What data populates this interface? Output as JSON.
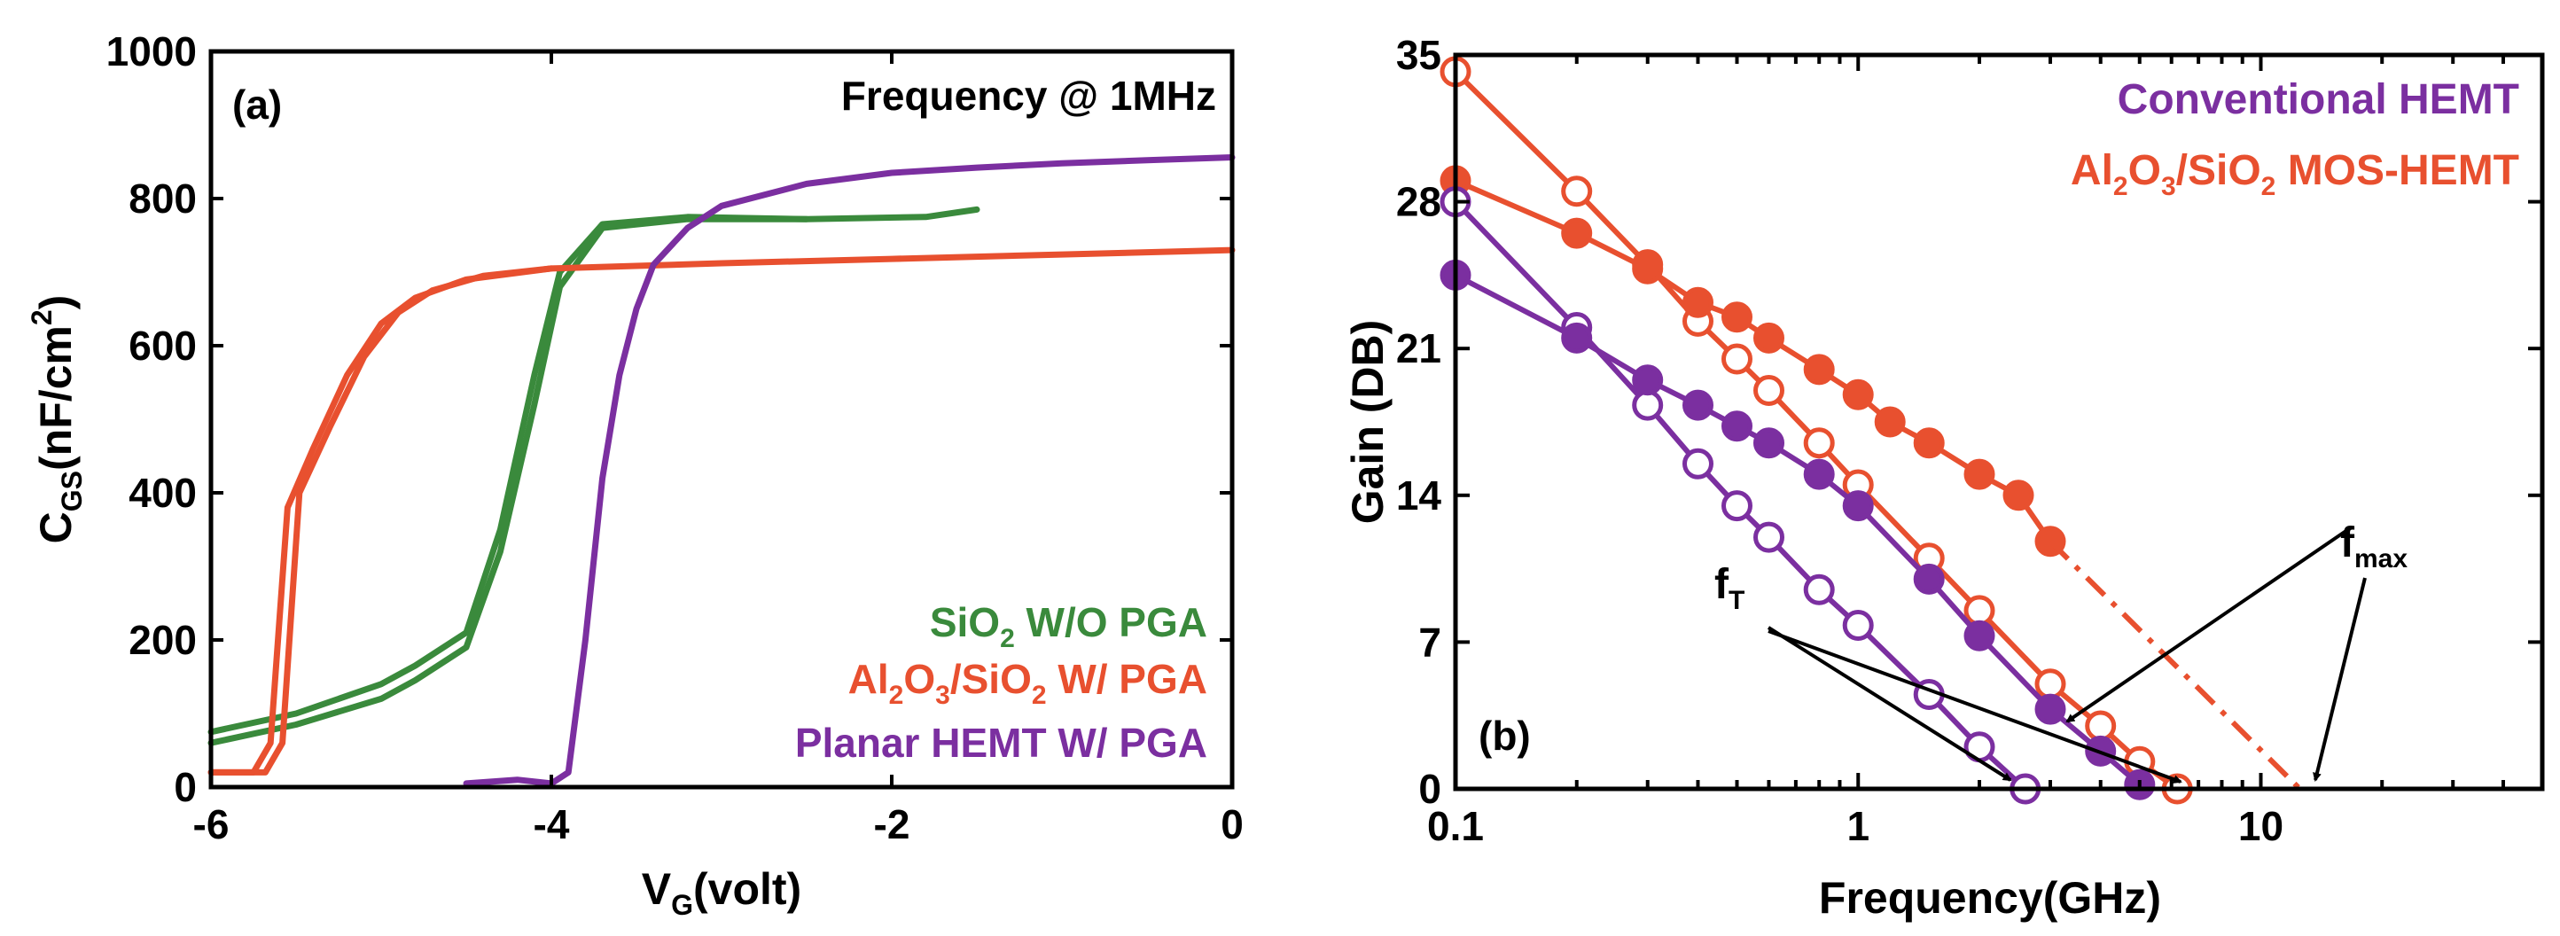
{
  "chart_data": [
    {
      "type": "line",
      "panel_label": "(a)",
      "annotation": "Frequency @ 1MHz",
      "xlabel": {
        "main": "V",
        "sub": "G",
        "rest": "(volt)"
      },
      "ylabel": {
        "main": "C",
        "sub": "GS",
        "rest": "(nF/cm",
        "sup": "2",
        "end": ")"
      },
      "xlim": [
        -6,
        0
      ],
      "ylim": [
        0,
        1000
      ],
      "xticks": [
        -6,
        -4,
        -2,
        0
      ],
      "xtick_labels": [
        "-6",
        "-4",
        "-2",
        "0"
      ],
      "yticks": [
        0,
        200,
        400,
        600,
        800,
        1000
      ],
      "ytick_labels": [
        "0",
        "200",
        "400",
        "600",
        "800",
        "1000"
      ],
      "legend_position": "bottom-right",
      "series": [
        {
          "name": "SiO2 W/O PGA",
          "legend": {
            "a": "SiO",
            "sub1": "2",
            "b": " W/O PGA"
          },
          "color": "#3a8a3c",
          "x": [
            -6,
            -5.5,
            -5,
            -4.8,
            -4.5,
            -4.3,
            -4.1,
            -3.95,
            -3.7,
            -3.2,
            -2.5,
            -1.8,
            -1.5
          ],
          "y": [
            75,
            100,
            140,
            165,
            210,
            350,
            560,
            700,
            765,
            775,
            772,
            775,
            785
          ]
        },
        {
          "name": "SiO2 W/O PGA (reverse)",
          "color": "#3a8a3c",
          "x": [
            -6,
            -5.5,
            -5,
            -4.8,
            -4.5,
            -4.3,
            -4.1,
            -3.95,
            -3.7,
            -3.2,
            -2.5
          ],
          "y": [
            60,
            85,
            120,
            145,
            190,
            320,
            520,
            680,
            760,
            772,
            772
          ]
        },
        {
          "name": "Al2O3/SiO2 W/ PGA",
          "legend": {
            "a": "Al",
            "sub1": "2",
            "b": "O",
            "sub2": "3",
            "c": "/SiO",
            "sub3": "2",
            "d": " W/ PGA"
          },
          "color": "#e8502f",
          "x": [
            -6,
            -5.75,
            -5.65,
            -5.55,
            -5.4,
            -5.2,
            -5,
            -4.8,
            -4.5,
            -4,
            -3,
            -2,
            -1,
            0
          ],
          "y": [
            20,
            20,
            60,
            380,
            460,
            560,
            630,
            665,
            690,
            705,
            712,
            718,
            724,
            730
          ]
        },
        {
          "name": "Al2O3/SiO2 W/ PGA (reverse)",
          "color": "#e8502f",
          "x": [
            -6,
            -5.68,
            -5.58,
            -5.48,
            -5.3,
            -5.1,
            -4.9,
            -4.7,
            -4.4,
            -4
          ],
          "y": [
            20,
            20,
            60,
            400,
            490,
            585,
            645,
            675,
            695,
            705
          ]
        },
        {
          "name": "Planar HEMT W/ PGA",
          "legend": {
            "a": "Planar HEMT W/ PGA"
          },
          "color": "#7b2fa0",
          "x": [
            -4.5,
            -4.2,
            -4,
            -3.9,
            -3.8,
            -3.7,
            -3.6,
            -3.5,
            -3.4,
            -3.2,
            -3,
            -2.5,
            -2,
            -1.5,
            -1,
            -0.5,
            0
          ],
          "y": [
            5,
            10,
            5,
            20,
            200,
            420,
            560,
            650,
            710,
            760,
            790,
            820,
            835,
            842,
            848,
            852,
            856
          ]
        }
      ]
    },
    {
      "type": "line",
      "panel_label": "(b)",
      "xlabel": "Frequency(GHz)",
      "ylabel": "Gain (DB)",
      "xscale": "log",
      "xlim": [
        0.1,
        50
      ],
      "ylim": [
        0,
        35
      ],
      "xticks": [
        0.1,
        1,
        10
      ],
      "xtick_labels": [
        "0.1",
        "1",
        "10"
      ],
      "yticks": [
        0,
        7,
        14,
        21,
        28,
        35
      ],
      "ytick_labels": [
        "0",
        "7",
        "14",
        "21",
        "28",
        "35"
      ],
      "legend_position": "top-right",
      "legend": [
        {
          "name": "Conventional HEMT",
          "color": "#7b2fa0",
          "parts": {
            "a": "Conventional HEMT"
          }
        },
        {
          "name": "Al2O3/SiO2 MOS-HEMT",
          "color": "#e8502f",
          "parts": {
            "a": "Al",
            "sub1": "2",
            "b": "O",
            "sub2": "3",
            "c": "/SiO",
            "sub3": "2",
            "d": " MOS-HEMT"
          }
        }
      ],
      "annotations": {
        "fT": {
          "main": "f",
          "sub": "T"
        },
        "fmax": {
          "main": "f",
          "sub": "max"
        }
      },
      "series": [
        {
          "name": "Al2O3/SiO2 MOS-HEMT fT (open)",
          "color": "#e8502f",
          "marker": "open",
          "x": [
            0.1,
            0.2,
            0.3,
            0.4,
            0.5,
            0.6,
            0.8,
            1,
            1.5,
            2,
            3,
            4,
            5,
            6.2
          ],
          "y": [
            34.2,
            28.5,
            25,
            22.3,
            20.5,
            19,
            16.5,
            14.5,
            11,
            8.5,
            5,
            3,
            1.3,
            0
          ]
        },
        {
          "name": "Al2O3/SiO2 MOS-HEMT fmax (filled)",
          "color": "#e8502f",
          "marker": "filled",
          "x": [
            0.1,
            0.2,
            0.3,
            0.4,
            0.5,
            0.6,
            0.8,
            1,
            1.2,
            1.5,
            2,
            2.5,
            3
          ],
          "y": [
            29,
            26.5,
            24.8,
            23.2,
            22.5,
            21.5,
            20,
            18.8,
            17.5,
            16.5,
            15,
            14,
            11.8
          ]
        },
        {
          "name": "Al2O3/SiO2 MOS-HEMT fmax (extrapolation)",
          "color": "#e8502f",
          "marker": "none",
          "dash": "dash-dot",
          "x": [
            3,
            12.5
          ],
          "y": [
            11.8,
            0
          ]
        },
        {
          "name": "Conventional HEMT fT (open)",
          "color": "#7b2fa0",
          "marker": "open",
          "x": [
            0.1,
            0.2,
            0.3,
            0.4,
            0.5,
            0.6,
            0.8,
            1,
            1.5,
            2,
            2.6
          ],
          "y": [
            28,
            22,
            18.3,
            15.5,
            13.5,
            12,
            9.5,
            7.8,
            4.5,
            2,
            0
          ]
        },
        {
          "name": "Conventional HEMT fmax (filled)",
          "color": "#7b2fa0",
          "marker": "filled",
          "x": [
            0.1,
            0.2,
            0.3,
            0.4,
            0.5,
            0.6,
            0.8,
            1,
            1.5,
            2,
            3,
            4,
            5
          ],
          "y": [
            24.5,
            21.5,
            19.5,
            18.3,
            17.3,
            16.5,
            15,
            13.5,
            10,
            7.3,
            3.8,
            1.8,
            0.2
          ]
        }
      ]
    }
  ]
}
